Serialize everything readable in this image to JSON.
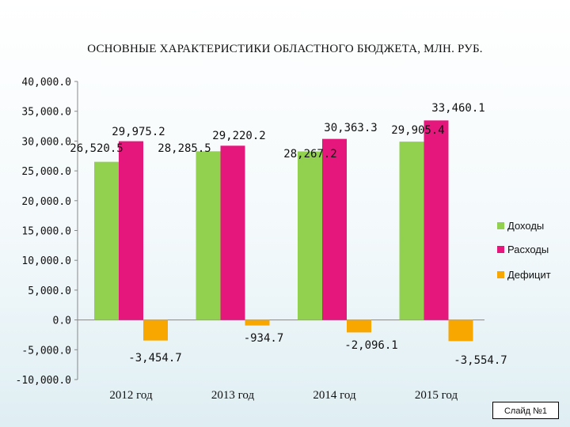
{
  "chart_data": {
    "type": "bar",
    "title": "ОСНОВНЫЕ ХАРАКТЕРИСТИКИ ОБЛАСТНОГО БЮДЖЕТА, МЛН. РУБ.",
    "categories": [
      "2012 год",
      "2013 год",
      "2014 год",
      "2015 год"
    ],
    "series": [
      {
        "name": "Доходы",
        "color": "#92d050",
        "values": [
          26520.5,
          28285.5,
          28267.2,
          29905.4
        ],
        "labels": [
          "26,520.5",
          "28,285.5",
          "28,267.2",
          "29,905.4"
        ]
      },
      {
        "name": "Расходы",
        "color": "#e5177d",
        "values": [
          29975.2,
          29220.2,
          30363.3,
          33460.1
        ],
        "labels": [
          "29,975.2",
          "29,220.2",
          "30,363.3",
          "33,460.1"
        ]
      },
      {
        "name": "Дефицит",
        "color": "#f7a700",
        "values": [
          -3454.7,
          -934.7,
          -2096.1,
          -3554.7
        ],
        "labels": [
          "-3,454.7",
          "-934.7",
          "-2,096.1",
          "-3,554.7"
        ]
      }
    ],
    "y_ticks": [
      40000,
      35000,
      30000,
      25000,
      20000,
      15000,
      10000,
      5000,
      0,
      -5000,
      -10000
    ],
    "y_tick_labels": [
      "40,000.0",
      "35,000.0",
      "30,000.0",
      "25,000.0",
      "20,000.0",
      "15,000.0",
      "10,000.0",
      "5,000.0",
      "0.0",
      "-5,000.0",
      "-10,000.0"
    ],
    "ylim": [
      -10000,
      40000
    ],
    "grid": false,
    "legend": "right"
  },
  "footer": {
    "slide_label": "Слайд №1"
  }
}
